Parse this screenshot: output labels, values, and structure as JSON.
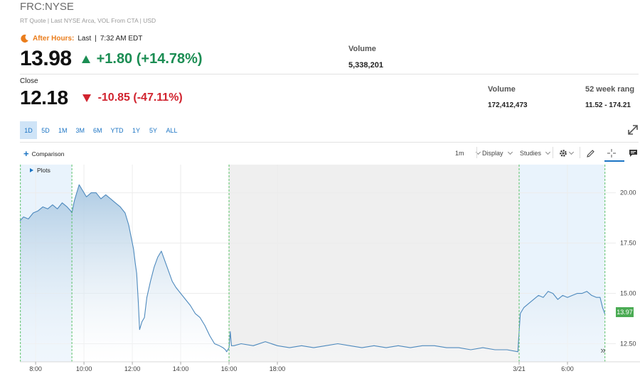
{
  "header": {
    "ticker": "FRC:NYSE",
    "subline": "RT Quote | Last NYSE Arca, VOL From CTA | USD"
  },
  "after_hours": {
    "label": "After Hours:",
    "last_label": "Last",
    "time": "7:32 AM EDT",
    "price": "13.98",
    "change": "+1.80 (+14.78%)",
    "volume_label": "Volume",
    "volume": "5,338,201",
    "icon": "moon-icon",
    "accent": "#ea7d1c",
    "change_color": "#1b8d53"
  },
  "close": {
    "label": "Close",
    "price": "12.18",
    "change": "-10.85 (-47.11%)",
    "change_color": "#d1242f",
    "volume_label": "Volume",
    "volume": "172,412,473",
    "week52_label": "52 week rang",
    "week52": "11.52 - 174.21"
  },
  "ranges": [
    {
      "label": "1D",
      "active": true
    },
    {
      "label": "5D",
      "active": false
    },
    {
      "label": "1M",
      "active": false
    },
    {
      "label": "3M",
      "active": false
    },
    {
      "label": "6M",
      "active": false
    },
    {
      "label": "YTD",
      "active": false
    },
    {
      "label": "1Y",
      "active": false
    },
    {
      "label": "5Y",
      "active": false
    },
    {
      "label": "ALL",
      "active": false
    }
  ],
  "toolbar": {
    "comparison": "Comparison",
    "interval": "1m",
    "display": "Display",
    "studies": "Studies",
    "plots": "Plots"
  },
  "chart_data": {
    "type": "area",
    "y_ticks": [
      "20.00",
      "17.50",
      "15.00",
      "12.50"
    ],
    "y_tick_values": [
      20.0,
      17.5,
      15.0,
      12.5
    ],
    "ylim": [
      11.6,
      21.4
    ],
    "x_ticks": [
      "8:00",
      "10:00",
      "12:00",
      "14:00",
      "16:00",
      "18:00",
      "3/21",
      "6:00"
    ],
    "x_tick_hours": [
      8,
      10,
      12,
      14,
      16,
      18,
      28,
      30
    ],
    "xlim": [
      7.35,
      32.0
    ],
    "sessions": {
      "premarket": [
        7.35,
        9.5
      ],
      "regular": [
        9.5,
        16.0
      ],
      "afterhours": [
        16.0,
        20.0
      ],
      "overnight": [
        20.0,
        28.0
      ],
      "premarket_next": [
        28.0,
        31.55
      ]
    },
    "last_price_label": "13.97",
    "last_price": 13.97,
    "series": [
      {
        "x": [
          7.35,
          7.5,
          7.7,
          7.9,
          8.1,
          8.3,
          8.5,
          8.7,
          8.9,
          9.1,
          9.3,
          9.45,
          9.5,
          9.6,
          9.8,
          9.95,
          10.1,
          10.3,
          10.5,
          10.7,
          10.9,
          11.1,
          11.3,
          11.5,
          11.7,
          11.85,
          11.95,
          12.05,
          12.12,
          12.18,
          12.25,
          12.3,
          12.4,
          12.5,
          12.6,
          12.75,
          12.9,
          13.05,
          13.2,
          13.35,
          13.5,
          13.65,
          13.8,
          14.0,
          14.2,
          14.4,
          14.6,
          14.8,
          15.0,
          15.2,
          15.4,
          15.6,
          15.75,
          15.85,
          15.9,
          16.0,
          16.05,
          16.1,
          16.2,
          16.5,
          17.0,
          17.5,
          18.0,
          18.5,
          19.0,
          19.5,
          20.0,
          20.5,
          21.0,
          21.5,
          22.0,
          22.5,
          23.0,
          23.5,
          24.0,
          24.5,
          25.0,
          25.5,
          26.0,
          26.5,
          27.0,
          27.5,
          27.95,
          28.0,
          28.05,
          28.2,
          28.4,
          28.6,
          28.8,
          29.0,
          29.2,
          29.4,
          29.6,
          29.8,
          30.0,
          30.2,
          30.4,
          30.6,
          30.8,
          31.0,
          31.2,
          31.35,
          31.45,
          31.55
        ],
        "y": [
          18.6,
          18.8,
          18.7,
          19.0,
          19.1,
          19.3,
          19.2,
          19.4,
          19.2,
          19.5,
          19.3,
          19.1,
          19.0,
          19.6,
          20.4,
          20.1,
          19.8,
          20.0,
          20.0,
          19.7,
          19.9,
          19.7,
          19.5,
          19.3,
          19.0,
          18.4,
          17.8,
          17.2,
          16.5,
          16.0,
          14.5,
          13.2,
          13.6,
          13.8,
          14.8,
          15.6,
          16.3,
          16.8,
          17.1,
          16.6,
          16.1,
          15.6,
          15.3,
          15.0,
          14.7,
          14.4,
          14.0,
          13.8,
          13.4,
          12.9,
          12.5,
          12.4,
          12.3,
          12.2,
          12.1,
          12.3,
          13.1,
          12.4,
          12.4,
          12.5,
          12.4,
          12.6,
          12.4,
          12.3,
          12.4,
          12.3,
          12.4,
          12.5,
          12.4,
          12.3,
          12.4,
          12.3,
          12.4,
          12.3,
          12.4,
          12.4,
          12.3,
          12.3,
          12.2,
          12.3,
          12.2,
          12.2,
          12.1,
          13.1,
          14.0,
          14.3,
          14.5,
          14.7,
          14.9,
          14.8,
          15.1,
          15.0,
          14.7,
          14.9,
          14.8,
          14.9,
          15.0,
          15.0,
          15.1,
          14.9,
          14.8,
          14.8,
          14.3,
          13.97
        ]
      }
    ],
    "colors": {
      "line": "#4d89bd",
      "area_top": "#a9c8e2",
      "area_bottom": "#ffffff",
      "extended_bg": "#e9f3fc",
      "closed_bg": "#efefef",
      "session_line": "#5cc26a",
      "last_price_tag": "#4aab53"
    }
  }
}
